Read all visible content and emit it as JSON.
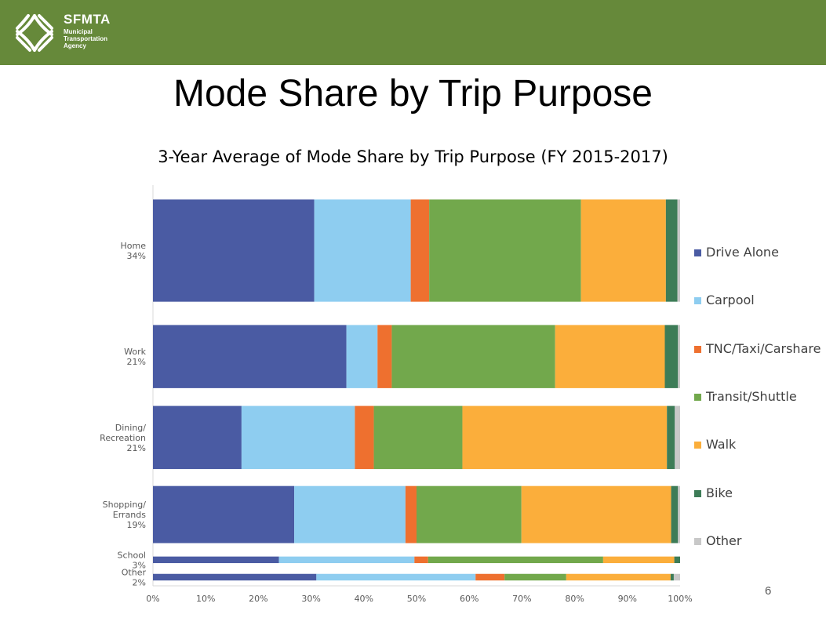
{
  "header": {
    "brand_name": "SFMTA",
    "brand_lines": [
      "Municipal",
      "Transportation",
      "Agency"
    ],
    "logo_icon": "sfmta-logo-icon"
  },
  "slide": {
    "title": "Mode Share by Trip Purpose",
    "page_number": "6"
  },
  "colors": {
    "header_bar": "#66893a",
    "Drive Alone": "#4a5ba3",
    "Carpool": "#8ecdf0",
    "TNC/Taxi/Carshare": "#ee702f",
    "Transit/Shuttle": "#72a84c",
    "Walk": "#fbae3b",
    "Bike": "#3d7c57",
    "Other": "#c8c8c8"
  },
  "chart_data": {
    "type": "bar",
    "orientation": "horizontal",
    "stacked": "100%",
    "title": "3-Year Average of Mode Share by Trip Purpose (FY 2015-2017)",
    "categories": [
      {
        "lines": [
          "Home",
          "34%"
        ]
      },
      {
        "lines": [
          "Work",
          "21%"
        ]
      },
      {
        "lines": [
          "Dining/",
          "Recreation",
          "21%"
        ]
      },
      {
        "lines": [
          "Shopping/",
          "Errands",
          "19%"
        ]
      },
      {
        "lines": [
          "School",
          "3%"
        ]
      },
      {
        "lines": [
          "Other",
          "2%"
        ]
      }
    ],
    "category_weights": [
      34,
      21,
      21,
      19,
      3,
      2
    ],
    "xlim": [
      0,
      100
    ],
    "x_ticks": [
      "0%",
      "10%",
      "20%",
      "30%",
      "40%",
      "50%",
      "60%",
      "70%",
      "80%",
      "90%",
      "100%"
    ],
    "legend_position": "right",
    "series": [
      {
        "name": "Drive Alone",
        "values": [
          30.6,
          36.7,
          16.8,
          26.8,
          23.9,
          31.0
        ]
      },
      {
        "name": "Carpool",
        "values": [
          18.3,
          5.9,
          21.5,
          21.1,
          25.7,
          30.2
        ]
      },
      {
        "name": "TNC/Taxi/Carshare",
        "values": [
          3.5,
          2.7,
          3.6,
          2.1,
          2.6,
          5.5
        ]
      },
      {
        "name": "Transit/Shuttle",
        "values": [
          28.8,
          31.0,
          16.8,
          19.9,
          33.2,
          11.7
        ]
      },
      {
        "name": "Walk",
        "values": [
          16.1,
          20.8,
          38.8,
          28.4,
          13.5,
          19.8
        ]
      },
      {
        "name": "Bike",
        "values": [
          2.2,
          2.5,
          1.5,
          1.3,
          1.1,
          0.6
        ]
      },
      {
        "name": "Other",
        "values": [
          0.5,
          0.4,
          1.0,
          0.4,
          0.0,
          1.2
        ]
      }
    ]
  }
}
